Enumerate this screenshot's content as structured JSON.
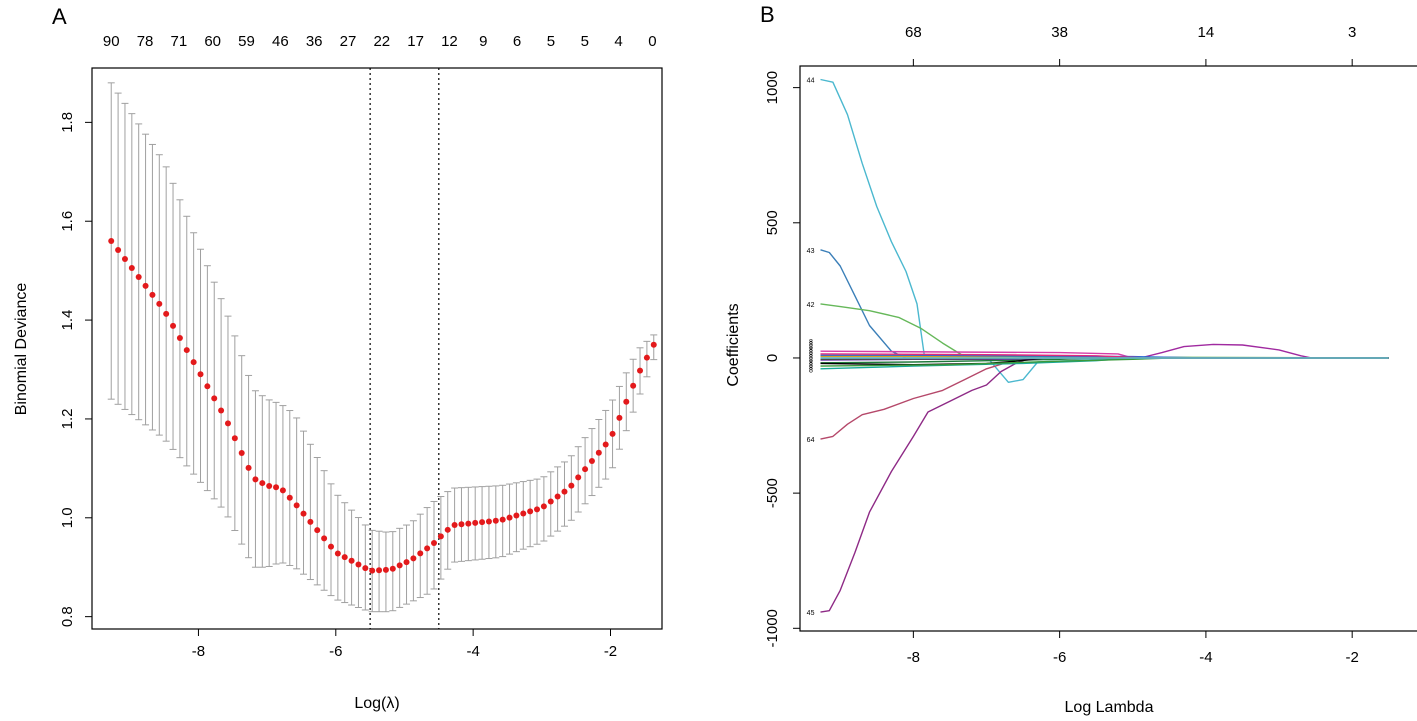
{
  "chart_data": [
    {
      "id": "A",
      "type": "line",
      "panel_label": "A",
      "title": "",
      "xlabel": "Log(λ)",
      "ylabel": "Binomial Deviance",
      "xlim": [
        -9.55,
        -1.25
      ],
      "ylim": [
        0.775,
        1.91
      ],
      "x_ticks": [
        -8,
        -6,
        -4,
        -2
      ],
      "x_tick_labels": [
        "-8",
        "-6",
        "-4",
        "-2"
      ],
      "y_ticks": [
        0.8,
        1.0,
        1.2,
        1.4,
        1.6,
        1.8
      ],
      "y_tick_labels": [
        "0.8",
        "1.0",
        "1.2",
        "1.4",
        "1.6",
        "1.8"
      ],
      "top_axis_labels": [
        "90",
        "78",
        "71",
        "60",
        "59",
        "46",
        "36",
        "27",
        "22",
        "17",
        "12",
        "9",
        "6",
        "5",
        "5",
        "4",
        "0"
      ],
      "vlines": [
        {
          "name": "lambda.min",
          "x": -5.5
        },
        {
          "name": "lambda.1se",
          "x": -4.5
        }
      ],
      "series": [
        {
          "name": "cv binomial deviance",
          "color": "#e31a1c",
          "errorbar_color": "#a0a0a0",
          "x_start": -9.27,
          "x_step": 0.1,
          "count": 80,
          "knots": [
            {
              "x": -9.27,
              "y": 1.56,
              "lo": 1.24,
              "hi": 1.88
            },
            {
              "x": -8.5,
              "y": 1.42,
              "lo": 1.16,
              "hi": 1.72
            },
            {
              "x": -7.6,
              "y": 1.2,
              "lo": 1.01,
              "hi": 1.42
            },
            {
              "x": -7.2,
              "y": 1.08,
              "lo": 0.9,
              "hi": 1.26
            },
            {
              "x": -7.0,
              "y": 1.065,
              "lo": 0.9,
              "hi": 1.24
            },
            {
              "x": -6.8,
              "y": 1.06,
              "lo": 0.91,
              "hi": 1.23
            },
            {
              "x": -6.6,
              "y": 1.03,
              "lo": 0.9,
              "hi": 1.21
            },
            {
              "x": -6.0,
              "y": 0.93,
              "lo": 0.835,
              "hi": 1.05
            },
            {
              "x": -5.5,
              "y": 0.893,
              "lo": 0.81,
              "hi": 0.975
            },
            {
              "x": -5.2,
              "y": 0.895,
              "lo": 0.81,
              "hi": 0.97
            },
            {
              "x": -4.9,
              "y": 0.915,
              "lo": 0.83,
              "hi": 0.99
            },
            {
              "x": -4.6,
              "y": 0.945,
              "lo": 0.85,
              "hi": 1.03
            },
            {
              "x": -4.3,
              "y": 0.985,
              "lo": 0.91,
              "hi": 1.06
            },
            {
              "x": -3.6,
              "y": 0.995,
              "lo": 0.92,
              "hi": 1.065
            },
            {
              "x": -3.0,
              "y": 1.02,
              "lo": 0.95,
              "hi": 1.08
            },
            {
              "x": -2.6,
              "y": 1.06,
              "lo": 0.99,
              "hi": 1.12
            },
            {
              "x": -2.0,
              "y": 1.16,
              "lo": 1.09,
              "hi": 1.23
            },
            {
              "x": -1.6,
              "y": 1.29,
              "lo": 1.24,
              "hi": 1.34
            },
            {
              "x": -1.37,
              "y": 1.35,
              "lo": 1.32,
              "hi": 1.37
            }
          ]
        }
      ]
    },
    {
      "id": "B",
      "type": "line",
      "panel_label": "B",
      "title": "",
      "xlabel": "Log Lambda",
      "ylabel": "Coefficients",
      "xlim": [
        -9.55,
        -1.1
      ],
      "ylim": [
        -1010,
        1080
      ],
      "x_ticks": [
        -8,
        -6,
        -4,
        -2
      ],
      "x_tick_labels": [
        "-8",
        "-6",
        "-4",
        "-2"
      ],
      "y_ticks": [
        -1000,
        -500,
        0,
        500,
        1000
      ],
      "y_tick_labels": [
        "-1000",
        "-500",
        "0",
        "500",
        "1000"
      ],
      "top_axis_ticks": [
        -8,
        -6,
        -4,
        -2
      ],
      "top_axis_labels": [
        "68",
        "38",
        "14",
        "3"
      ],
      "series": [
        {
          "name": "44",
          "label": "44",
          "color": "#4bb8cf",
          "points": [
            [
              -9.27,
              1030
            ],
            [
              -9.1,
              1020
            ],
            [
              -8.9,
              900
            ],
            [
              -8.7,
              720
            ],
            [
              -8.5,
              560
            ],
            [
              -8.3,
              430
            ],
            [
              -8.1,
              320
            ],
            [
              -7.95,
              200
            ],
            [
              -7.85,
              10
            ],
            [
              -7.0,
              5
            ],
            [
              -6.7,
              -90
            ],
            [
              -6.5,
              -80
            ],
            [
              -6.3,
              -15
            ],
            [
              -5.0,
              0
            ],
            [
              -1.5,
              0
            ]
          ]
        },
        {
          "name": "43",
          "label": "43",
          "color": "#3b7fb8",
          "points": [
            [
              -9.27,
              400
            ],
            [
              -9.15,
              390
            ],
            [
              -9.0,
              340
            ],
            [
              -8.8,
              230
            ],
            [
              -8.6,
              120
            ],
            [
              -8.3,
              25
            ],
            [
              -8.1,
              0
            ],
            [
              -1.5,
              0
            ]
          ]
        },
        {
          "name": "42",
          "label": "42",
          "color": "#66b85a",
          "points": [
            [
              -9.27,
              200
            ],
            [
              -9.0,
              190
            ],
            [
              -8.6,
              175
            ],
            [
              -8.2,
              150
            ],
            [
              -7.9,
              110
            ],
            [
              -7.6,
              55
            ],
            [
              -7.3,
              5
            ],
            [
              -1.5,
              0
            ]
          ]
        },
        {
          "name": "64",
          "label": "64",
          "color": "#b5486a",
          "points": [
            [
              -9.27,
              -300
            ],
            [
              -9.1,
              -290
            ],
            [
              -8.9,
              -245
            ],
            [
              -8.7,
              -210
            ],
            [
              -8.4,
              -190
            ],
            [
              -8.0,
              -150
            ],
            [
              -7.6,
              -120
            ],
            [
              -7.3,
              -80
            ],
            [
              -7.0,
              -40
            ],
            [
              -6.7,
              -15
            ],
            [
              -6.5,
              0
            ],
            [
              -1.5,
              0
            ]
          ]
        },
        {
          "name": "45",
          "label": "45",
          "color": "#8e2a86",
          "points": [
            [
              -9.27,
              -940
            ],
            [
              -9.15,
              -935
            ],
            [
              -9.0,
              -860
            ],
            [
              -8.8,
              -720
            ],
            [
              -8.6,
              -570
            ],
            [
              -8.3,
              -420
            ],
            [
              -8.0,
              -290
            ],
            [
              -7.8,
              -200
            ],
            [
              -7.5,
              -160
            ],
            [
              -7.2,
              -120
            ],
            [
              -7.0,
              -100
            ],
            [
              -6.9,
              -75
            ],
            [
              -6.8,
              -50
            ],
            [
              -6.6,
              -20
            ],
            [
              -6.4,
              0
            ],
            [
              -1.5,
              0
            ]
          ]
        },
        {
          "name": "bump",
          "label": "",
          "color": "#a02aa0",
          "points": [
            [
              -9.27,
              0
            ],
            [
              -4.9,
              0
            ],
            [
              -4.6,
              20
            ],
            [
              -4.3,
              42
            ],
            [
              -3.9,
              50
            ],
            [
              -3.5,
              48
            ],
            [
              -3.0,
              30
            ],
            [
              -2.7,
              8
            ],
            [
              -2.55,
              0
            ],
            [
              -1.5,
              0
            ]
          ]
        },
        {
          "name": "c1",
          "label": "",
          "color": "#d63ca8",
          "points": [
            [
              -9.27,
              25
            ],
            [
              -7.5,
              22
            ],
            [
              -6.0,
              20
            ],
            [
              -5.2,
              15
            ],
            [
              -5.0,
              0
            ],
            [
              -1.5,
              0
            ]
          ]
        },
        {
          "name": "c2",
          "label": "",
          "color": "#2a6ad4",
          "points": [
            [
              -9.27,
              10
            ],
            [
              -7.0,
              8
            ],
            [
              -5.0,
              5
            ],
            [
              -4.0,
              0
            ],
            [
              -1.5,
              0
            ]
          ]
        },
        {
          "name": "c3",
          "label": "",
          "color": "#1aa89a",
          "points": [
            [
              -9.27,
              -40
            ],
            [
              -8.0,
              -30
            ],
            [
              -6.5,
              -20
            ],
            [
              -5.5,
              -10
            ],
            [
              -5.0,
              0
            ],
            [
              -1.5,
              0
            ]
          ]
        },
        {
          "name": "c4",
          "label": "",
          "color": "#1f7a3a",
          "points": [
            [
              -9.27,
              -18
            ],
            [
              -8.0,
              -15
            ],
            [
              -7.0,
              -10
            ],
            [
              -6.0,
              -5
            ],
            [
              -5.5,
              0
            ],
            [
              -1.5,
              0
            ]
          ]
        },
        {
          "name": "c5",
          "label": "",
          "color": "#000000",
          "points": [
            [
              -9.27,
              -20
            ],
            [
              -8.0,
              -25
            ],
            [
              -7.0,
              -20
            ],
            [
              -6.6,
              -12
            ],
            [
              -6.2,
              0
            ],
            [
              -1.5,
              0
            ]
          ]
        },
        {
          "name": "c6",
          "label": "",
          "color": "#6a3aa8",
          "points": [
            [
              -9.27,
              -8
            ],
            [
              -8.0,
              -5
            ],
            [
              -6.8,
              -5
            ],
            [
              -6.0,
              0
            ],
            [
              -1.5,
              0
            ]
          ]
        },
        {
          "name": "c7",
          "label": "",
          "color": "#d8a020",
          "points": [
            [
              -9.27,
              5
            ],
            [
              -8.0,
              5
            ],
            [
              -7.0,
              3
            ],
            [
              -6.5,
              0
            ],
            [
              -1.5,
              0
            ]
          ]
        },
        {
          "name": "c8",
          "label": "",
          "color": "#3a9a3a",
          "points": [
            [
              -9.27,
              -30
            ],
            [
              -7.5,
              -25
            ],
            [
              -6.0,
              -12
            ],
            [
              -5.0,
              -5
            ],
            [
              -4.5,
              0
            ],
            [
              -1.5,
              0
            ]
          ]
        },
        {
          "name": "c9",
          "label": "",
          "color": "#e0287a",
          "points": [
            [
              -9.27,
              15
            ],
            [
              -7.0,
              12
            ],
            [
              -5.5,
              8
            ],
            [
              -4.8,
              0
            ],
            [
              -1.5,
              0
            ]
          ]
        },
        {
          "name": "c10",
          "label": "",
          "color": "#4a4a4a",
          "points": [
            [
              -9.27,
              -5
            ],
            [
              -7.0,
              -3
            ],
            [
              -6.5,
              0
            ],
            [
              -1.5,
              0
            ]
          ]
        },
        {
          "name": "c11",
          "label": "",
          "color": "#5fc6d8",
          "points": [
            [
              -9.27,
              0
            ],
            [
              -1.5,
              0
            ]
          ]
        }
      ]
    }
  ]
}
